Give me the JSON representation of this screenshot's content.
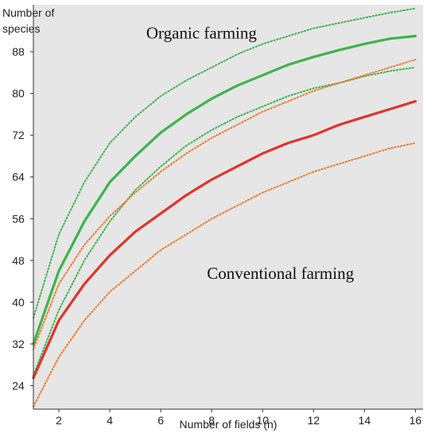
{
  "chart_data": {
    "type": "line",
    "title": "",
    "xlabel": "Number of fields (n)",
    "ylabel_lines": [
      "Number of",
      "species"
    ],
    "xlim": [
      1,
      16.3
    ],
    "ylim": [
      19.5,
      97
    ],
    "x_ticks": [
      2,
      4,
      6,
      8,
      10,
      12,
      14,
      16
    ],
    "y_ticks": [
      24,
      32,
      40,
      48,
      56,
      64,
      72,
      80,
      88
    ],
    "grid": false,
    "plot_background": "#e6e6e6",
    "annotations": [
      {
        "text": "Organic farming",
        "x": 7.6,
        "y": 90.5
      },
      {
        "text": "Conventional farming",
        "x": 10.7,
        "y": 44.5
      }
    ],
    "series": [
      {
        "color": "#3cb44b",
        "style": "solid",
        "x": [
          1,
          2,
          3,
          4,
          5,
          6,
          7,
          8,
          9,
          10,
          11,
          12,
          13,
          14,
          15,
          16
        ],
        "y": [
          32,
          46,
          55.5,
          63,
          68,
          72.5,
          76,
          79,
          81.5,
          83.5,
          85.5,
          87,
          88.3,
          89.5,
          90.5,
          91
        ]
      },
      {
        "color": "#3cb44b",
        "style": "dotted",
        "x": [
          1,
          2,
          3,
          4,
          5,
          6,
          7,
          8,
          9,
          10,
          11,
          12,
          13,
          14,
          15,
          16
        ],
        "y": [
          37,
          53,
          63,
          70.5,
          75.5,
          79.5,
          82.5,
          85,
          87.5,
          89.5,
          91,
          92.5,
          93.5,
          94.5,
          95.5,
          96.3
        ]
      },
      {
        "color": "#3cb44b",
        "style": "dotted",
        "x": [
          1,
          2,
          3,
          4,
          5,
          6,
          7,
          8,
          9,
          10,
          11,
          12,
          13,
          14,
          15,
          16
        ],
        "y": [
          26,
          38.5,
          48,
          55.5,
          61.5,
          66,
          70,
          73,
          75.5,
          77.5,
          79.5,
          81,
          82,
          83.3,
          84.3,
          85
        ]
      },
      {
        "color": "#e2332a",
        "style": "solid",
        "x": [
          1,
          2,
          3,
          4,
          5,
          6,
          7,
          8,
          9,
          10,
          11,
          12,
          13,
          14,
          15,
          16
        ],
        "y": [
          25.5,
          36.5,
          43.5,
          49,
          53.5,
          57,
          60.5,
          63.5,
          66,
          68.5,
          70.5,
          72,
          74,
          75.5,
          77,
          78.5
        ]
      },
      {
        "color": "#f07a2a",
        "style": "dotted",
        "x": [
          1,
          2,
          3,
          4,
          5,
          6,
          7,
          8,
          9,
          10,
          11,
          12,
          13,
          14,
          15,
          16
        ],
        "y": [
          31,
          43.5,
          51,
          56.5,
          61,
          65,
          68.5,
          71.5,
          74,
          76.5,
          78.5,
          80.5,
          82,
          83.5,
          85,
          86.5
        ]
      },
      {
        "color": "#f07a2a",
        "style": "dotted",
        "x": [
          1,
          2,
          3,
          4,
          5,
          6,
          7,
          8,
          9,
          10,
          11,
          12,
          13,
          14,
          15,
          16
        ],
        "y": [
          20,
          29.5,
          36.5,
          42,
          46,
          50,
          53,
          56,
          58.5,
          61,
          63,
          65,
          66.5,
          68,
          69.5,
          70.5
        ]
      }
    ]
  }
}
